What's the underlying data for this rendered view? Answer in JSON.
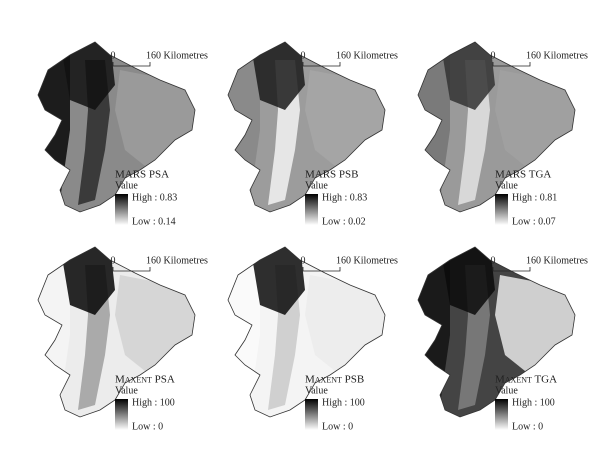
{
  "panels": [
    {
      "title": "MARS PSA",
      "value_label": "Value",
      "high": "High : 0.83",
      "low": "Low : 0.14",
      "scale_zero": "0",
      "scale_distance": "160 Kilometres"
    },
    {
      "title": "MARS PSB",
      "value_label": "Value",
      "high": "High : 0.83",
      "low": "Low : 0.02",
      "scale_zero": "0",
      "scale_distance": "160 Kilometres"
    },
    {
      "title": "MARS TGA",
      "value_label": "Value",
      "high": "High : 0.81",
      "low": "Low : 0.07",
      "scale_zero": "0",
      "scale_distance": "160 Kilometres"
    },
    {
      "title": "Maxent PSA",
      "value_label": "Value",
      "high": "High : 100",
      "low": "Low : 0",
      "scale_zero": "0",
      "scale_distance": "160 Kilometres"
    },
    {
      "title": "Maxent PSB",
      "value_label": "Value",
      "high": "High : 100",
      "low": "Low : 0",
      "scale_zero": "0",
      "scale_distance": "160 Kilometres"
    },
    {
      "title": "Maxent TGA",
      "value_label": "Value",
      "high": "High : 100",
      "low": "Low : 0",
      "scale_zero": "0",
      "scale_distance": "160 Kilometres"
    }
  ]
}
